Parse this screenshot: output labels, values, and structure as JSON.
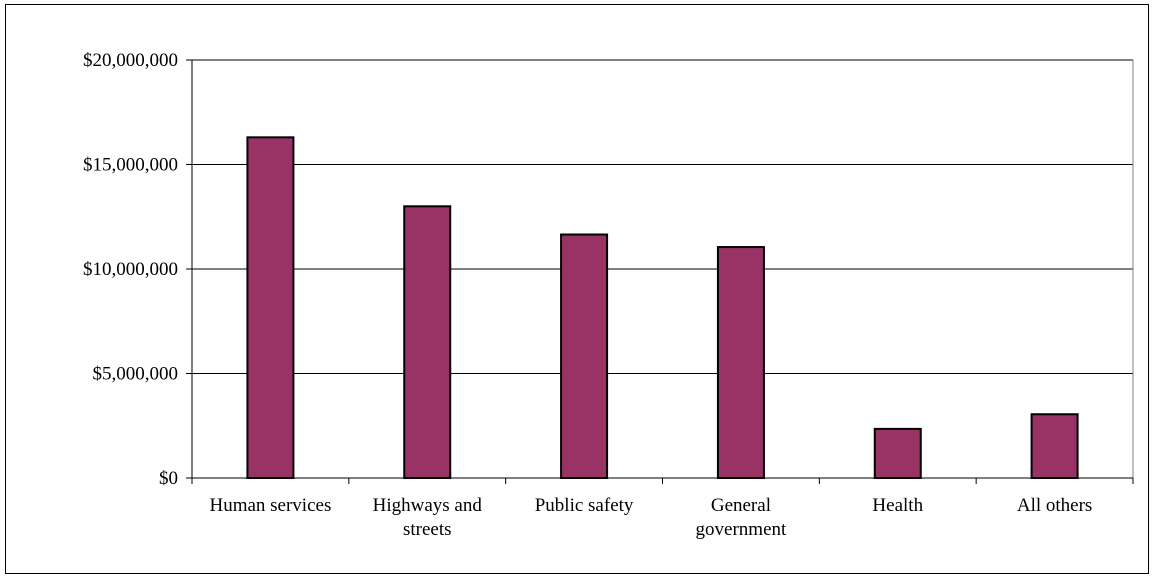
{
  "chart_data": {
    "type": "bar",
    "title": "",
    "xlabel": "",
    "ylabel": "",
    "categories": [
      [
        "Human services"
      ],
      [
        "Highways and",
        "streets"
      ],
      [
        "Public safety"
      ],
      [
        "General",
        "government"
      ],
      [
        "Health"
      ],
      [
        "All others"
      ]
    ],
    "values": [
      16300000,
      13000000,
      11650000,
      11050000,
      2350000,
      3050000
    ],
    "ylim": [
      0,
      20000000
    ],
    "yticks": [
      0,
      5000000,
      10000000,
      15000000,
      20000000
    ],
    "ytick_labels": [
      "$0",
      "$5,000,000",
      "$10,000,000",
      "$15,000,000",
      "$20,000,000"
    ],
    "grid": true,
    "legend": "none",
    "bar_color": "#993366",
    "bar_edge_color": "#000000"
  }
}
